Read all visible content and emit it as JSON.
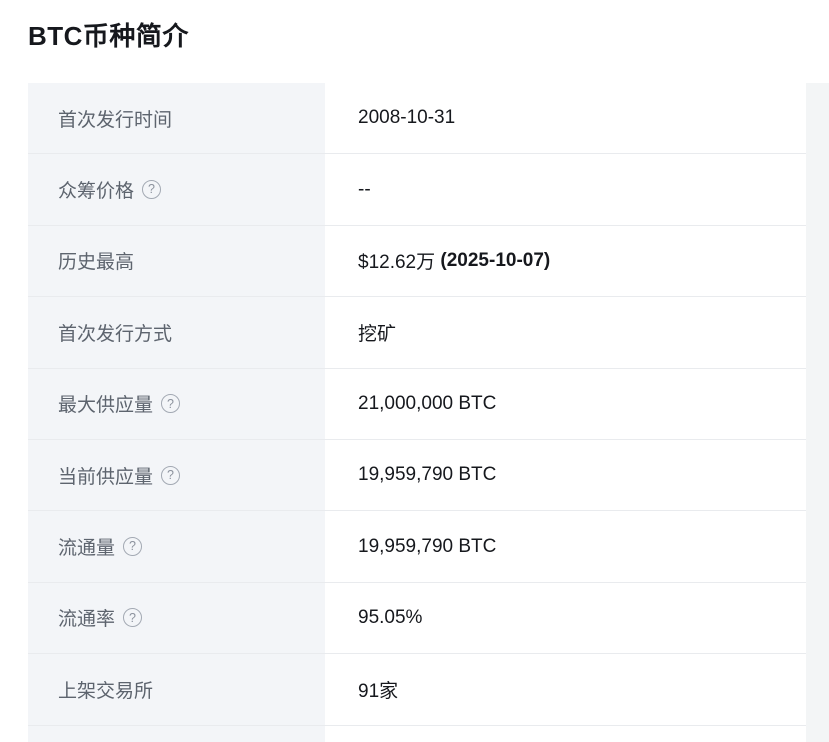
{
  "page": {
    "title": "BTC币种简介"
  },
  "table": {
    "help_glyph": "?",
    "rows": [
      {
        "label": "首次发行时间",
        "has_help": false,
        "value": "2008-10-31"
      },
      {
        "label": "众筹价格",
        "has_help": true,
        "value": "--"
      },
      {
        "label": "历史最高",
        "has_help": false,
        "value": "$12.62万",
        "value_date": " (2025-10-07)"
      },
      {
        "label": "首次发行方式",
        "has_help": false,
        "value": "挖矿"
      },
      {
        "label": "最大供应量",
        "has_help": true,
        "value": "21,000,000 BTC"
      },
      {
        "label": "当前供应量",
        "has_help": true,
        "value": "19,959,790 BTC"
      },
      {
        "label": "流通量",
        "has_help": true,
        "value": "19,959,790 BTC"
      },
      {
        "label": "流通率",
        "has_help": true,
        "value": "95.05%"
      },
      {
        "label": "上架交易所",
        "has_help": false,
        "value": "91家"
      }
    ]
  },
  "colors": {
    "label_column_bg": "#f3f5f8",
    "value_column_bg": "#ffffff",
    "divider": "#e9ebee",
    "label_text": "#5d646e",
    "value_text": "#16181d",
    "title_text": "#16181d",
    "right_strip_bg": "#f3f5f6",
    "help_icon": "#8d939e"
  }
}
